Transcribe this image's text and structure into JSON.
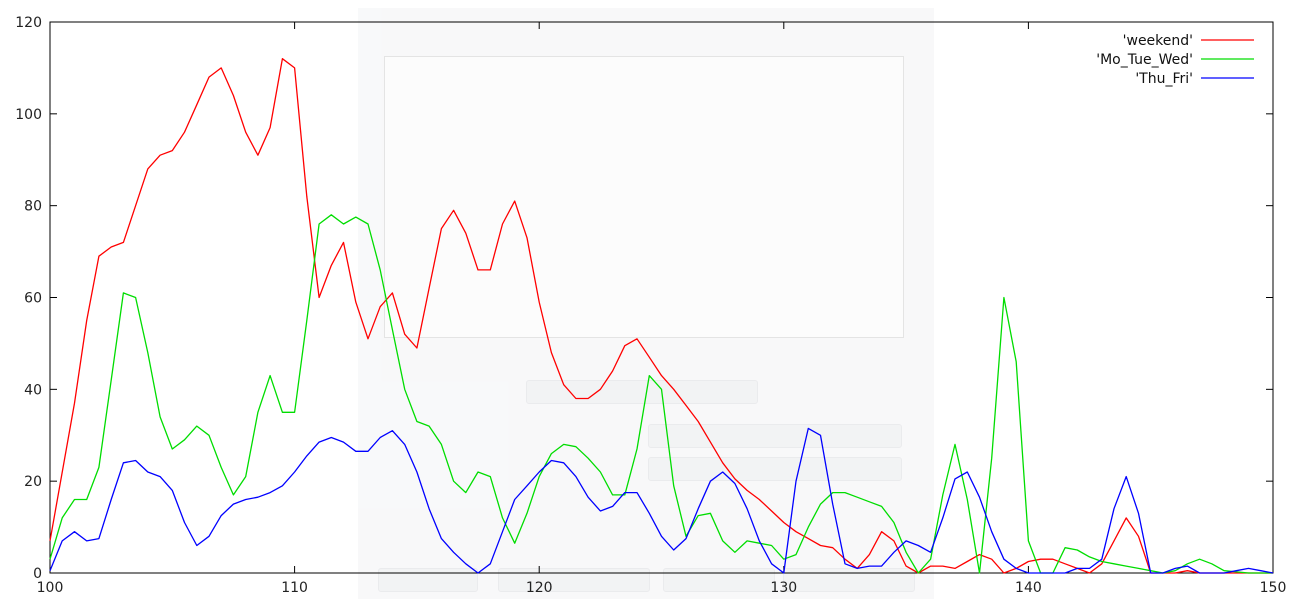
{
  "chart_data": {
    "type": "line",
    "title": "",
    "xlabel": "",
    "ylabel": "",
    "xlim": [
      100,
      150
    ],
    "ylim": [
      0,
      120
    ],
    "x_ticks": [
      100,
      110,
      120,
      130,
      140,
      150
    ],
    "y_ticks": [
      0,
      20,
      40,
      60,
      80,
      100,
      120
    ],
    "grid": false,
    "legend_position": "top-right",
    "series": [
      {
        "name": "'weekend'",
        "color": "#ff0000",
        "points": [
          [
            100,
            7
          ],
          [
            101,
            37
          ],
          [
            101.5,
            55
          ],
          [
            102,
            69
          ],
          [
            102.5,
            71
          ],
          [
            103,
            72
          ],
          [
            103.5,
            80
          ],
          [
            104,
            88
          ],
          [
            104.5,
            91
          ],
          [
            105,
            92
          ],
          [
            105.5,
            96
          ],
          [
            106,
            102
          ],
          [
            106.5,
            108
          ],
          [
            107,
            110
          ],
          [
            107.5,
            104
          ],
          [
            108,
            96
          ],
          [
            108.5,
            91
          ],
          [
            109,
            97
          ],
          [
            109.5,
            112
          ],
          [
            110,
            110
          ],
          [
            110.5,
            82
          ],
          [
            111,
            60
          ],
          [
            111.5,
            67
          ],
          [
            112,
            72
          ],
          [
            112.5,
            59
          ],
          [
            113,
            51
          ],
          [
            113.5,
            58
          ],
          [
            114,
            61
          ],
          [
            114.5,
            52
          ],
          [
            115,
            49
          ],
          [
            115.5,
            62
          ],
          [
            116,
            75
          ],
          [
            116.5,
            79
          ],
          [
            117,
            74
          ],
          [
            117.5,
            66
          ],
          [
            118,
            66
          ],
          [
            118.5,
            76
          ],
          [
            119,
            81
          ],
          [
            119.5,
            73
          ],
          [
            120,
            59
          ],
          [
            120.5,
            48
          ],
          [
            121,
            41
          ],
          [
            121.5,
            38
          ],
          [
            122,
            38
          ],
          [
            122.5,
            40
          ],
          [
            123,
            44
          ],
          [
            123.5,
            49.5
          ],
          [
            124,
            51
          ],
          [
            124.5,
            47
          ],
          [
            125,
            43
          ],
          [
            125.5,
            40
          ],
          [
            126,
            36.5
          ],
          [
            126.5,
            33
          ],
          [
            127,
            28.5
          ],
          [
            127.5,
            24
          ],
          [
            128,
            20.5
          ],
          [
            128.5,
            18
          ],
          [
            129,
            16
          ],
          [
            129.5,
            13.5
          ],
          [
            130,
            11
          ],
          [
            130.5,
            9
          ],
          [
            131,
            7.5
          ],
          [
            131.5,
            6
          ],
          [
            132,
            5.5
          ],
          [
            132.5,
            3
          ],
          [
            133,
            1
          ],
          [
            133.5,
            4
          ],
          [
            134,
            9
          ],
          [
            134.5,
            7
          ],
          [
            135,
            1.5
          ],
          [
            135.5,
            0
          ],
          [
            136,
            1.5
          ],
          [
            136.5,
            1.5
          ],
          [
            137,
            1
          ],
          [
            137.5,
            2.5
          ],
          [
            138,
            4
          ],
          [
            138.5,
            3
          ],
          [
            139,
            0
          ],
          [
            139.5,
            1
          ],
          [
            140,
            2.5
          ],
          [
            140.5,
            3
          ],
          [
            141,
            3
          ],
          [
            141.5,
            2
          ],
          [
            142,
            1
          ],
          [
            142.5,
            0
          ],
          [
            143,
            2
          ],
          [
            143.5,
            7
          ],
          [
            144,
            12
          ],
          [
            144.5,
            8
          ],
          [
            145,
            0
          ],
          [
            146,
            0
          ],
          [
            146.5,
            0.5
          ],
          [
            147,
            0
          ],
          [
            148,
            0
          ],
          [
            149,
            0
          ],
          [
            150,
            0
          ]
        ]
      },
      {
        "name": "'Mo_Tue_Wed'",
        "color": "#00dd00",
        "points": [
          [
            100,
            3
          ],
          [
            100.5,
            12
          ],
          [
            101,
            16
          ],
          [
            101.5,
            16
          ],
          [
            102,
            23
          ],
          [
            102.5,
            42
          ],
          [
            103,
            61
          ],
          [
            103.5,
            60
          ],
          [
            104,
            48
          ],
          [
            104.5,
            34
          ],
          [
            105,
            27
          ],
          [
            105.5,
            29
          ],
          [
            106,
            32
          ],
          [
            106.5,
            30
          ],
          [
            107,
            23
          ],
          [
            107.5,
            17
          ],
          [
            108,
            21
          ],
          [
            108.5,
            35
          ],
          [
            109,
            43
          ],
          [
            109.5,
            35
          ],
          [
            110,
            35
          ],
          [
            110.5,
            55
          ],
          [
            111,
            76
          ],
          [
            111.5,
            78
          ],
          [
            112,
            76
          ],
          [
            112.5,
            77.5
          ],
          [
            113,
            76
          ],
          [
            113.5,
            66
          ],
          [
            114,
            53
          ],
          [
            114.5,
            40
          ],
          [
            115,
            33
          ],
          [
            115.5,
            32
          ],
          [
            116,
            28
          ],
          [
            116.5,
            20
          ],
          [
            117,
            17.5
          ],
          [
            117.5,
            22
          ],
          [
            118,
            21
          ],
          [
            118.5,
            12
          ],
          [
            119,
            6.5
          ],
          [
            119.5,
            13
          ],
          [
            120,
            21
          ],
          [
            120.5,
            26
          ],
          [
            121,
            28
          ],
          [
            121.5,
            27.5
          ],
          [
            122,
            25
          ],
          [
            122.5,
            22
          ],
          [
            123,
            17
          ],
          [
            123.5,
            17
          ],
          [
            124,
            27
          ],
          [
            124.5,
            43
          ],
          [
            125,
            40
          ],
          [
            125.5,
            19
          ],
          [
            126,
            8
          ],
          [
            126.5,
            12.5
          ],
          [
            127,
            13
          ],
          [
            127.5,
            7
          ],
          [
            128,
            4.5
          ],
          [
            128.5,
            7
          ],
          [
            129,
            6.5
          ],
          [
            129.5,
            6
          ],
          [
            130,
            3
          ],
          [
            130.5,
            4
          ],
          [
            131,
            10
          ],
          [
            131.5,
            15
          ],
          [
            132,
            17.5
          ],
          [
            132.5,
            17.5
          ],
          [
            133,
            16.5
          ],
          [
            133.5,
            15.5
          ],
          [
            134,
            14.5
          ],
          [
            134.5,
            11
          ],
          [
            135,
            4.5
          ],
          [
            135.5,
            0
          ],
          [
            136,
            3
          ],
          [
            136.5,
            17
          ],
          [
            137,
            28
          ],
          [
            137.5,
            16
          ],
          [
            138,
            0
          ],
          [
            138.5,
            25
          ],
          [
            139,
            60
          ],
          [
            139.5,
            46
          ],
          [
            140,
            7
          ],
          [
            140.5,
            0
          ],
          [
            141,
            0
          ],
          [
            141.5,
            5.5
          ],
          [
            142,
            5
          ],
          [
            142.5,
            3.5
          ],
          [
            143,
            2.5
          ],
          [
            143.5,
            2
          ],
          [
            144,
            1.5
          ],
          [
            144.5,
            1
          ],
          [
            145,
            0.5
          ],
          [
            145.5,
            0
          ],
          [
            146,
            0.5
          ],
          [
            146.5,
            2
          ],
          [
            147,
            3
          ],
          [
            147.5,
            2
          ],
          [
            148,
            0.5
          ],
          [
            149,
            0
          ],
          [
            150,
            0
          ]
        ]
      },
      {
        "name": "'Thu_Fri'",
        "color": "#0000ff",
        "points": [
          [
            100,
            0.5
          ],
          [
            100.5,
            7
          ],
          [
            101,
            9
          ],
          [
            101.5,
            7
          ],
          [
            102,
            7.5
          ],
          [
            102.5,
            16
          ],
          [
            103,
            24
          ],
          [
            103.5,
            24.5
          ],
          [
            104,
            22
          ],
          [
            104.5,
            21
          ],
          [
            105,
            18
          ],
          [
            105.5,
            11
          ],
          [
            106,
            6
          ],
          [
            106.5,
            8
          ],
          [
            107,
            12.5
          ],
          [
            107.5,
            15
          ],
          [
            108,
            16
          ],
          [
            108.5,
            16.5
          ],
          [
            109,
            17.5
          ],
          [
            109.5,
            19
          ],
          [
            110,
            22
          ],
          [
            110.5,
            25.5
          ],
          [
            111,
            28.5
          ],
          [
            111.5,
            29.5
          ],
          [
            112,
            28.5
          ],
          [
            112.5,
            26.5
          ],
          [
            113,
            26.5
          ],
          [
            113.5,
            29.5
          ],
          [
            114,
            31
          ],
          [
            114.5,
            28
          ],
          [
            115,
            22
          ],
          [
            115.5,
            14
          ],
          [
            116,
            7.5
          ],
          [
            116.5,
            4.5
          ],
          [
            117,
            2
          ],
          [
            117.5,
            0
          ],
          [
            118,
            2
          ],
          [
            118.5,
            9
          ],
          [
            119,
            16
          ],
          [
            119.5,
            19
          ],
          [
            120,
            22
          ],
          [
            120.5,
            24.5
          ],
          [
            121,
            24
          ],
          [
            121.5,
            21
          ],
          [
            122,
            16.5
          ],
          [
            122.5,
            13.5
          ],
          [
            123,
            14.5
          ],
          [
            123.5,
            17.5
          ],
          [
            124,
            17.5
          ],
          [
            124.5,
            13
          ],
          [
            125,
            8
          ],
          [
            125.5,
            5
          ],
          [
            126,
            7.5
          ],
          [
            126.5,
            14
          ],
          [
            127,
            20
          ],
          [
            127.5,
            22
          ],
          [
            128,
            19.5
          ],
          [
            128.5,
            14
          ],
          [
            129,
            7
          ],
          [
            129.5,
            2
          ],
          [
            130,
            0
          ],
          [
            130.5,
            20
          ],
          [
            131,
            31.5
          ],
          [
            131.5,
            30
          ],
          [
            132,
            15
          ],
          [
            132.5,
            2
          ],
          [
            133,
            1
          ],
          [
            133.5,
            1.5
          ],
          [
            134,
            1.5
          ],
          [
            134.5,
            4.5
          ],
          [
            135,
            7
          ],
          [
            135.5,
            6
          ],
          [
            136,
            4.5
          ],
          [
            136.5,
            12
          ],
          [
            137,
            20.5
          ],
          [
            137.5,
            22
          ],
          [
            138,
            16.5
          ],
          [
            138.5,
            9
          ],
          [
            139,
            3
          ],
          [
            139.5,
            1
          ],
          [
            140,
            0
          ],
          [
            141,
            0
          ],
          [
            141.5,
            0
          ],
          [
            142,
            1
          ],
          [
            142.5,
            1
          ],
          [
            143,
            3
          ],
          [
            143.5,
            14
          ],
          [
            144,
            21
          ],
          [
            144.5,
            13
          ],
          [
            145,
            0
          ],
          [
            145.5,
            0
          ],
          [
            146,
            1
          ],
          [
            146.5,
            1.5
          ],
          [
            147,
            0
          ],
          [
            148,
            0
          ],
          [
            148.5,
            0.5
          ],
          [
            149,
            1
          ],
          [
            149.5,
            0.5
          ],
          [
            150,
            0
          ]
        ]
      }
    ]
  }
}
